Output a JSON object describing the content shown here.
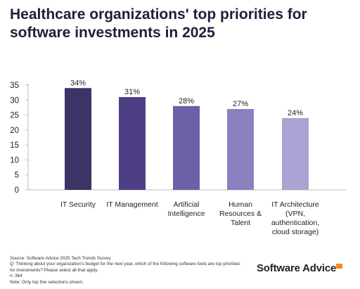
{
  "title": "Healthcare organizations' top priorities for software investments in 2025",
  "chart_data": {
    "type": "bar",
    "categories": [
      "IT Security",
      "IT Management",
      "Artificial Intelligence",
      "Human Resources & Talent",
      "IT Architecture (VPN, authentication, cloud storage)"
    ],
    "category_lines": [
      [
        "IT Security"
      ],
      [
        "IT Management"
      ],
      [
        "Artificial",
        "Intelligence"
      ],
      [
        "Human",
        "Resources &",
        "Talent"
      ],
      [
        "IT Architecture",
        "(VPN,",
        "authentication,",
        "cloud storage)"
      ]
    ],
    "values": [
      34,
      31,
      28,
      27,
      24
    ],
    "data_labels": [
      "34%",
      "31%",
      "28%",
      "27%",
      "24%"
    ],
    "bar_colors": [
      "#3d3366",
      "#4e3f85",
      "#6d5fa8",
      "#8b80c0",
      "#aba3d3"
    ],
    "ylim": [
      0,
      35
    ],
    "yticks": [
      0,
      5,
      10,
      15,
      20,
      25,
      30,
      35
    ],
    "grid": false
  },
  "footer": {
    "source": "Source: Software Advice 2025 Tech Trends Survey",
    "question": "Q: Thinking about your organization's budget for the next year, which of the following software tools are top priorities for investments? Please select all that apply.",
    "n": "n: 364",
    "note": "Note: Only top five selections shown."
  },
  "brand": {
    "name": "Software Advice",
    "accent": "#f58a1f"
  }
}
